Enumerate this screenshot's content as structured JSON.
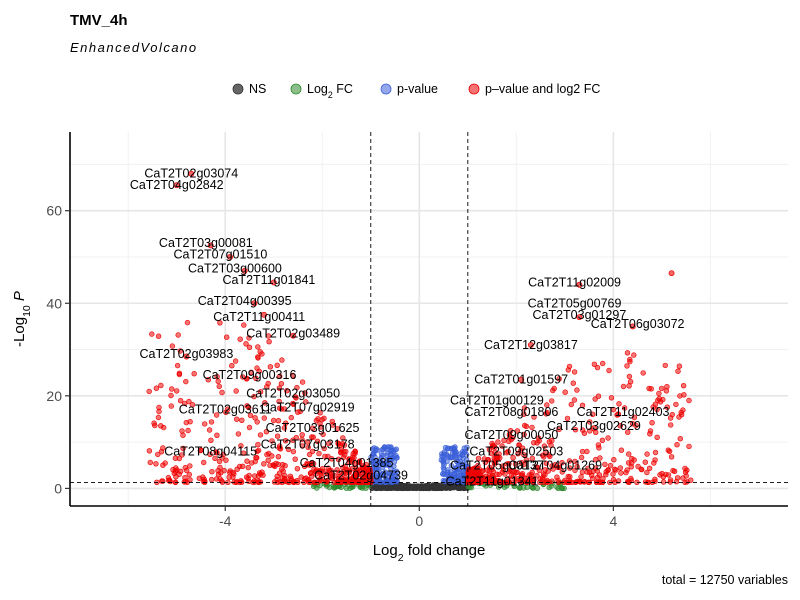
{
  "chart_data": {
    "type": "scatter",
    "title": "TMV_4h",
    "subtitle": "EnhancedVolcano",
    "caption": "total = 12750 variables",
    "xlabel": "Log2 fold change",
    "ylabel": "-Log10 P",
    "xlim": [
      -7.2,
      7.6
    ],
    "ylim": [
      -3.8,
      77
    ],
    "x_ticks": [
      -4,
      0,
      4
    ],
    "y_ticks": [
      0,
      20,
      40,
      60
    ],
    "grid": true,
    "legend_position": "top",
    "fc_cutoff": 1,
    "p_cutoff_log10": 1.3,
    "legend": [
      {
        "key": "NS",
        "label": "NS",
        "color": "#333333"
      },
      {
        "key": "FC",
        "label": "Log2 FC",
        "color": "#2e8b2e"
      },
      {
        "key": "P",
        "label": "p-value",
        "color": "#3a5fd8"
      },
      {
        "key": "PFC",
        "label": "p–value and log2 FC",
        "color": "#ee0000"
      }
    ],
    "labels": [
      {
        "text": "CaT2T02g03074",
        "x": -4.7,
        "y": 68.0
      },
      {
        "text": "CaT2T04g02842",
        "x": -5.0,
        "y": 65.5
      },
      {
        "text": "CaT2T03g00081",
        "x": -4.4,
        "y": 53.0
      },
      {
        "text": "CaT2T07g01510",
        "x": -4.1,
        "y": 50.5
      },
      {
        "text": "CaT2T03g00600",
        "x": -3.8,
        "y": 47.5
      },
      {
        "text": "CaT2T11g01841",
        "x": -3.1,
        "y": 45.0
      },
      {
        "text": "CaT2T04g00395",
        "x": -3.6,
        "y": 40.5
      },
      {
        "text": "CaT2T11g00411",
        "x": -3.3,
        "y": 37.0
      },
      {
        "text": "CaT2T02g03489",
        "x": -2.6,
        "y": 33.5
      },
      {
        "text": "CaT2T02g03983",
        "x": -4.8,
        "y": 29.0
      },
      {
        "text": "CaT2T09g00316",
        "x": -3.5,
        "y": 24.5
      },
      {
        "text": "CaT2T02g03050",
        "x": -2.6,
        "y": 20.5
      },
      {
        "text": "CaT2T02g03611",
        "x": -4.0,
        "y": 17.0
      },
      {
        "text": "CaT2T07g02919",
        "x": -2.3,
        "y": 17.5
      },
      {
        "text": "CaT2T03g01625",
        "x": -2.2,
        "y": 13.0
      },
      {
        "text": "CaT2T07g03178",
        "x": -2.3,
        "y": 9.5
      },
      {
        "text": "CaT2T08g04115",
        "x": -4.3,
        "y": 8.0
      },
      {
        "text": "CaT2T04g01385",
        "x": -1.5,
        "y": 5.5
      },
      {
        "text": "CaT2T02g04739",
        "x": -1.2,
        "y": 2.8
      },
      {
        "text": "CaT2T11g02009",
        "x": 3.2,
        "y": 44.5
      },
      {
        "text": "CaT2T05g00769",
        "x": 3.2,
        "y": 40.0
      },
      {
        "text": "CaT2T03g01297",
        "x": 3.3,
        "y": 37.5
      },
      {
        "text": "CaT2T06g03072",
        "x": 4.5,
        "y": 35.5
      },
      {
        "text": "CaT2T12g03817",
        "x": 2.3,
        "y": 31.0
      },
      {
        "text": "CaT2T01g01597",
        "x": 2.1,
        "y": 23.5
      },
      {
        "text": "CaT2T01g00129",
        "x": 1.6,
        "y": 19.0
      },
      {
        "text": "CaT2T08g01806",
        "x": 1.9,
        "y": 16.5
      },
      {
        "text": "CaT2T11g02403",
        "x": 4.2,
        "y": 16.5
      },
      {
        "text": "CaT2T03g02629",
        "x": 3.6,
        "y": 13.5
      },
      {
        "text": "CaT2T09g00050",
        "x": 1.9,
        "y": 11.5
      },
      {
        "text": "CaT2T09g02503",
        "x": 2.0,
        "y": 8.0
      },
      {
        "text": "CaT2T05g00137",
        "x": 1.6,
        "y": 5.0
      },
      {
        "text": "CaT2T04g01269",
        "x": 2.8,
        "y": 5.0
      },
      {
        "text": "CaT2T11g01341",
        "x": 1.5,
        "y": 1.5
      }
    ],
    "highlight_points": [
      {
        "x": -4.7,
        "y": 68.0
      },
      {
        "x": -5.0,
        "y": 65.5
      },
      {
        "x": -4.3,
        "y": 52.5
      },
      {
        "x": -3.9,
        "y": 50.0
      },
      {
        "x": -3.6,
        "y": 47.0
      },
      {
        "x": -3.0,
        "y": 44.5
      },
      {
        "x": -3.4,
        "y": 40.0
      },
      {
        "x": -3.2,
        "y": 37.5
      },
      {
        "x": -2.6,
        "y": 33.0
      },
      {
        "x": 5.2,
        "y": 46.5
      },
      {
        "x": 3.3,
        "y": 37.0
      },
      {
        "x": 4.4,
        "y": 35.0
      },
      {
        "x": 4.1,
        "y": 16.0
      },
      {
        "x": 3.6,
        "y": 13.0
      },
      {
        "x": 2.3,
        "y": 31.0
      },
      {
        "x": 3.3,
        "y": 44.0
      },
      {
        "x": 2.1,
        "y": 23.5
      },
      {
        "x": -4.8,
        "y": 28.5
      }
    ],
    "point_clouds": [
      {
        "key": "PFC",
        "n": 520,
        "xmin": -5.6,
        "xmax": -1.0,
        "ymin": 1.3,
        "ymax": 36,
        "side": -1
      },
      {
        "key": "PFC",
        "n": 500,
        "xmin": 1.0,
        "xmax": 5.6,
        "ymin": 1.3,
        "ymax": 30,
        "side": 1
      },
      {
        "key": "P",
        "n": 130,
        "xmin": -1.0,
        "xmax": -0.45,
        "ymin": 1.3,
        "ymax": 9,
        "side": -1
      },
      {
        "key": "P",
        "n": 130,
        "xmin": 0.45,
        "xmax": 1.0,
        "ymin": 1.3,
        "ymax": 9,
        "side": 1
      },
      {
        "key": "FC",
        "n": 45,
        "xmin": -2.2,
        "xmax": -1.0,
        "ymin": 0.0,
        "ymax": 1.3,
        "side": -1
      },
      {
        "key": "FC",
        "n": 45,
        "xmin": 1.0,
        "xmax": 3.0,
        "ymin": 0.0,
        "ymax": 1.3,
        "side": 1
      },
      {
        "key": "NS",
        "n": 320,
        "xmin": -1.0,
        "xmax": 1.0,
        "ymin": 0.0,
        "ymax": 1.3,
        "side": 0
      }
    ]
  }
}
